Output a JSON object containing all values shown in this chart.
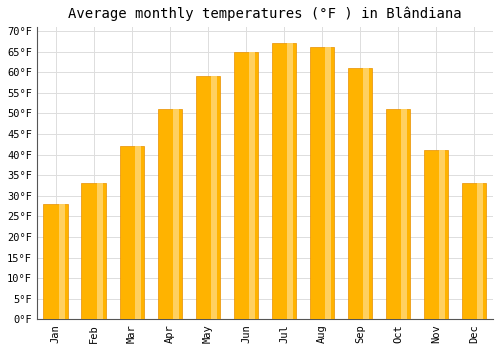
{
  "title": "Average monthly temperatures (°F ) in Blândiana",
  "months": [
    "Jan",
    "Feb",
    "Mar",
    "Apr",
    "May",
    "Jun",
    "Jul",
    "Aug",
    "Sep",
    "Oct",
    "Nov",
    "Dec"
  ],
  "values": [
    28,
    33,
    42,
    51,
    59,
    65,
    67,
    66,
    61,
    51,
    41,
    33
  ],
  "bar_color_top": "#FFB300",
  "bar_color_bottom": "#FFA000",
  "bar_edge_color": "#E89000",
  "background_color": "#ffffff",
  "grid_color": "#dddddd",
  "ytick_step": 5,
  "ymin": 0,
  "ymax": 70,
  "title_fontsize": 10,
  "tick_fontsize": 7.5,
  "font_family": "monospace"
}
